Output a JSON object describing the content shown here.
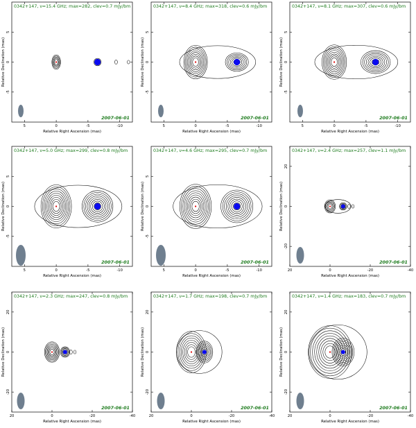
{
  "date_label": "2007-06-01",
  "xlabel": "Relative Right Ascension (mas)",
  "ylabel": "Relative Declination (mas)",
  "title_color": "#1b7a1b",
  "beam_color": "#6f7f8f",
  "component_color": "#0a0af0",
  "core_marker_color": "#e00000",
  "chart_data": [
    {
      "type": "contour",
      "title": "0342+147, ν=15.4 GHz; max=282, clev=0.7 mJy/bm",
      "xlim": [
        7,
        -12
      ],
      "ylim": [
        -10,
        10
      ],
      "xticks": [
        5,
        0,
        -5,
        -10
      ],
      "yticks": [
        5,
        0,
        -5
      ],
      "core": {
        "x": 0,
        "y": 0
      },
      "component": {
        "x": -6.5,
        "y": 0
      }
    },
    {
      "type": "contour",
      "title": "0342+147, ν=8.4 GHz; max=318, clev=0.6 mJy/bm",
      "xlim": [
        7,
        -12
      ],
      "ylim": [
        -10,
        10
      ],
      "xticks": [
        5,
        0,
        -5,
        -10
      ],
      "yticks": [
        5,
        0,
        -5
      ],
      "core": {
        "x": 0,
        "y": 0
      },
      "component": {
        "x": -6.5,
        "y": 0
      }
    },
    {
      "type": "contour",
      "title": "0342+147, ν=8.1 GHz; max=307, clev=0.6 mJy/bm",
      "xlim": [
        7,
        -12
      ],
      "ylim": [
        -10,
        10
      ],
      "xticks": [
        5,
        0,
        -5,
        -10
      ],
      "yticks": [
        5,
        0,
        -5
      ],
      "core": {
        "x": 0,
        "y": 0
      },
      "component": {
        "x": -6.5,
        "y": 0
      }
    },
    {
      "type": "contour",
      "title": "0342+147, ν=5.0 GHz; max=299, clev=0.8 mJy/bm",
      "xlim": [
        7,
        -12
      ],
      "ylim": [
        -10,
        10
      ],
      "xticks": [
        5,
        0,
        -5,
        -10
      ],
      "yticks": [
        5,
        0,
        -5
      ],
      "core": {
        "x": 0,
        "y": 0
      },
      "component": {
        "x": -6.5,
        "y": 0
      }
    },
    {
      "type": "contour",
      "title": "0342+147, ν=4.6 GHz; max=295, clev=0.7 mJy/bm",
      "xlim": [
        7,
        -12
      ],
      "ylim": [
        -10,
        10
      ],
      "xticks": [
        5,
        0,
        -5,
        -10
      ],
      "yticks": [
        5,
        0,
        -5
      ],
      "core": {
        "x": 0,
        "y": 0
      },
      "component": {
        "x": -6.5,
        "y": 0
      }
    },
    {
      "type": "contour",
      "title": "0342+147, ν=2.4 GHz; max=257, clev=1.1 mJy/bm",
      "xlim": [
        20,
        -40
      ],
      "ylim": [
        -30,
        30
      ],
      "xticks": [
        20,
        0,
        -20,
        -40
      ],
      "yticks": [
        20,
        0,
        -20
      ],
      "core": {
        "x": 0,
        "y": 0
      },
      "component": {
        "x": -6.5,
        "y": 0
      }
    },
    {
      "type": "contour",
      "title": "0342+147, ν=2.3 GHz; max=247, clev=0.8 mJy/bm",
      "xlim": [
        20,
        -40
      ],
      "ylim": [
        -30,
        30
      ],
      "xticks": [
        20,
        0,
        -20,
        -40
      ],
      "yticks": [
        20,
        0,
        -20
      ],
      "core": {
        "x": 0,
        "y": 0
      },
      "component": {
        "x": -6.5,
        "y": 0
      }
    },
    {
      "type": "contour",
      "title": "0342+147, ν=1.7 GHz; max=198, clev=0.7 mJy/bm",
      "xlim": [
        20,
        -40
      ],
      "ylim": [
        -30,
        30
      ],
      "xticks": [
        20,
        0,
        -20,
        -40
      ],
      "yticks": [
        20,
        0,
        -20
      ],
      "core": {
        "x": 0,
        "y": 0
      },
      "component": {
        "x": -6.5,
        "y": 0
      }
    },
    {
      "type": "contour",
      "title": "0342+147, ν=1.4 GHz; max=183, clev=0.7 mJy/bm",
      "xlim": [
        20,
        -40
      ],
      "ylim": [
        -30,
        30
      ],
      "xticks": [
        20,
        0,
        -20,
        -40
      ],
      "yticks": [
        20,
        0,
        -20
      ],
      "core": {
        "x": 0,
        "y": 0
      },
      "component": {
        "x": -6.5,
        "y": 0
      }
    }
  ]
}
